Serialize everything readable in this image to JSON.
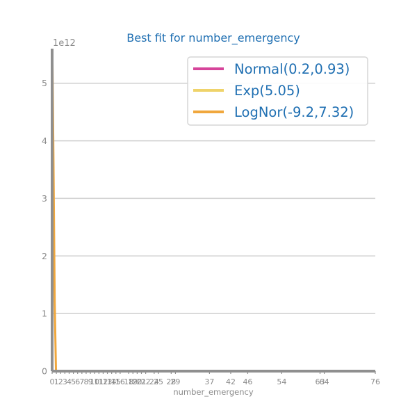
{
  "chart_data": {
    "type": "line",
    "title": "Best fit for number_emergency",
    "xlabel": "number_emergency",
    "ylabel": "",
    "y_offset_label": "1e12",
    "xlim": [
      0,
      76
    ],
    "ylim": [
      0,
      5.6
    ],
    "yticks": [
      0,
      1,
      2,
      3,
      4,
      5
    ],
    "xticks": [
      0,
      1,
      2,
      3,
      4,
      5,
      6,
      7,
      8,
      9,
      10,
      11,
      12,
      13,
      14,
      15,
      16,
      18,
      19,
      20,
      21,
      22,
      24,
      25,
      28,
      29,
      37,
      42,
      46,
      54,
      63,
      64,
      76
    ],
    "grid": "horizontal",
    "legend_position": "top-right",
    "colors": {
      "axis": "#8f8f8f",
      "title": "#1f6fb2",
      "legend_text": "#1f6fb2"
    },
    "series": [
      {
        "name": "Normal(0.2,0.93)",
        "color": "#d6449a",
        "x": [
          0,
          1,
          2,
          3,
          4,
          76
        ],
        "y": [
          0,
          0,
          0,
          0,
          0,
          0
        ]
      },
      {
        "name": "Exp(5.05)",
        "color": "#efd36a",
        "x": [
          0,
          1,
          2,
          76
        ],
        "y": [
          0,
          0,
          0,
          0
        ]
      },
      {
        "name": "LogNor(-9.2,7.32)",
        "color": "#f0a73d",
        "x": [
          0.05,
          0.3,
          0.6,
          0.9,
          1.0,
          76
        ],
        "y": [
          5.6,
          3.8,
          1.2,
          0.02,
          0,
          0
        ]
      }
    ],
    "hist": {
      "color": "#8f8f8f",
      "bins_x": [
        0,
        0.3
      ],
      "values": [
        5.6
      ]
    }
  }
}
